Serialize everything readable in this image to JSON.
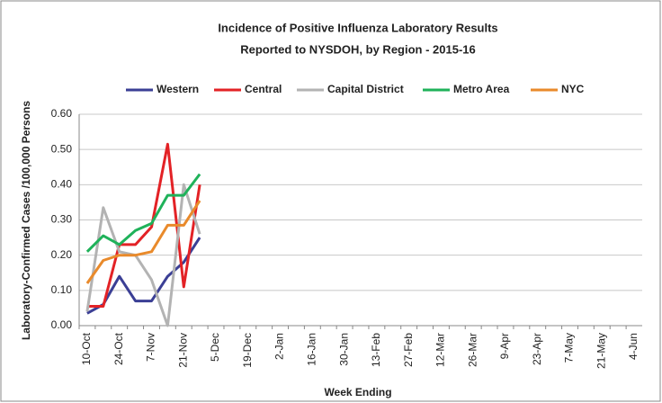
{
  "chart_data": {
    "type": "line",
    "title": "Incidence of Positive Influenza Laboratory Results",
    "subtitle": "Reported to NYSDOH, by Region - 2015-16",
    "x_label": "Week Ending",
    "y_label": "Laboratory-Confirmed Cases /100,000 Persons",
    "categories": [
      "10-Oct",
      null,
      "24-Oct",
      null,
      "7-Nov",
      null,
      "21-Nov",
      null,
      "5-Dec",
      null,
      "19-Dec",
      null,
      "2-Jan",
      null,
      "16-Jan",
      null,
      "30-Jan",
      null,
      "13-Feb",
      null,
      "27-Feb",
      null,
      "12-Mar",
      null,
      "26-Mar",
      null,
      "9-Apr",
      null,
      "23-Apr",
      null,
      "7-May",
      null,
      "21-May",
      null,
      "4-Jun"
    ],
    "series": [
      {
        "name": "Western",
        "color": "#3b3f95",
        "values": [
          0.035,
          0.06,
          0.14,
          0.07,
          0.07,
          0.14,
          0.18,
          0.25,
          null,
          null,
          null,
          null,
          null,
          null,
          null,
          null,
          null,
          null,
          null,
          null,
          null,
          null,
          null,
          null,
          null,
          null,
          null,
          null,
          null,
          null,
          null,
          null,
          null,
          null,
          null
        ]
      },
      {
        "name": "Central",
        "color": "#e32226",
        "values": [
          0.055,
          0.055,
          0.23,
          0.23,
          0.28,
          0.515,
          0.11,
          0.4,
          null,
          null,
          null,
          null,
          null,
          null,
          null,
          null,
          null,
          null,
          null,
          null,
          null,
          null,
          null,
          null,
          null,
          null,
          null,
          null,
          null,
          null,
          null,
          null,
          null,
          null,
          null
        ]
      },
      {
        "name": "Capital District",
        "color": "#b3b3b3",
        "values": [
          0.04,
          0.335,
          0.21,
          0.2,
          0.13,
          0.0,
          0.4,
          0.26,
          null,
          null,
          null,
          null,
          null,
          null,
          null,
          null,
          null,
          null,
          null,
          null,
          null,
          null,
          null,
          null,
          null,
          null,
          null,
          null,
          null,
          null,
          null,
          null,
          null,
          null,
          null
        ]
      },
      {
        "name": "Metro Area",
        "color": "#1fb25a",
        "values": [
          0.21,
          0.255,
          0.23,
          0.27,
          0.29,
          0.37,
          0.37,
          0.43,
          null,
          null,
          null,
          null,
          null,
          null,
          null,
          null,
          null,
          null,
          null,
          null,
          null,
          null,
          null,
          null,
          null,
          null,
          null,
          null,
          null,
          null,
          null,
          null,
          null,
          null,
          null
        ]
      },
      {
        "name": "NYC",
        "color": "#e98a2b",
        "values": [
          0.12,
          0.185,
          0.2,
          0.2,
          0.21,
          0.285,
          0.285,
          0.355,
          null,
          null,
          null,
          null,
          null,
          null,
          null,
          null,
          null,
          null,
          null,
          null,
          null,
          null,
          null,
          null,
          null,
          null,
          null,
          null,
          null,
          null,
          null,
          null,
          null,
          null,
          null
        ]
      }
    ],
    "ylim": [
      0,
      0.6
    ],
    "yticks": [
      {
        "value": 0,
        "label": "0.00"
      },
      {
        "value": 0.1,
        "label": "0.10"
      },
      {
        "value": 0.2,
        "label": "0.20"
      },
      {
        "value": 0.3,
        "label": "0.30"
      },
      {
        "value": 0.4,
        "label": "0.40"
      },
      {
        "value": 0.5,
        "label": "0.50"
      },
      {
        "value": 0.6,
        "label": "0.60"
      }
    ],
    "grid": true
  }
}
